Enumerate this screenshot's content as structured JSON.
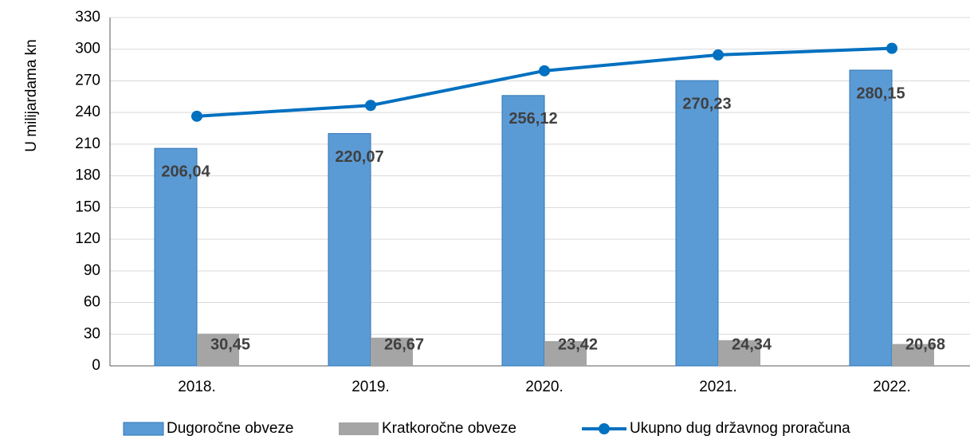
{
  "chart_data": {
    "type": "bar",
    "y_label": "U milijardama kn",
    "categories": [
      "2018.",
      "2019.",
      "2020.",
      "2021.",
      "2022."
    ],
    "series": [
      {
        "name": "Dugoročne obveze",
        "color": "#5b9bd5",
        "values": [
          206.04,
          220.07,
          256.12,
          270.23,
          280.15
        ],
        "value_labels": [
          "206,04",
          "220,07",
          "256,12",
          "270,23",
          "280,15"
        ]
      },
      {
        "name": "Kratkoročne obveze",
        "color": "#a5a5a5",
        "values": [
          30.45,
          26.67,
          23.42,
          24.34,
          20.68
        ],
        "value_labels": [
          "30,45",
          "26,67",
          "23,42",
          "24,34",
          "20,68"
        ]
      },
      {
        "name": "Ukupno dug državnog proračuna",
        "type": "line",
        "color": "#0070c0",
        "values": [
          236.49,
          246.74,
          279.54,
          294.57,
          300.83
        ]
      }
    ],
    "ylim": [
      0,
      330
    ],
    "yticks": [
      0,
      30,
      60,
      90,
      120,
      150,
      180,
      210,
      240,
      270,
      300,
      330
    ],
    "grid": true,
    "legend": "bottom"
  }
}
